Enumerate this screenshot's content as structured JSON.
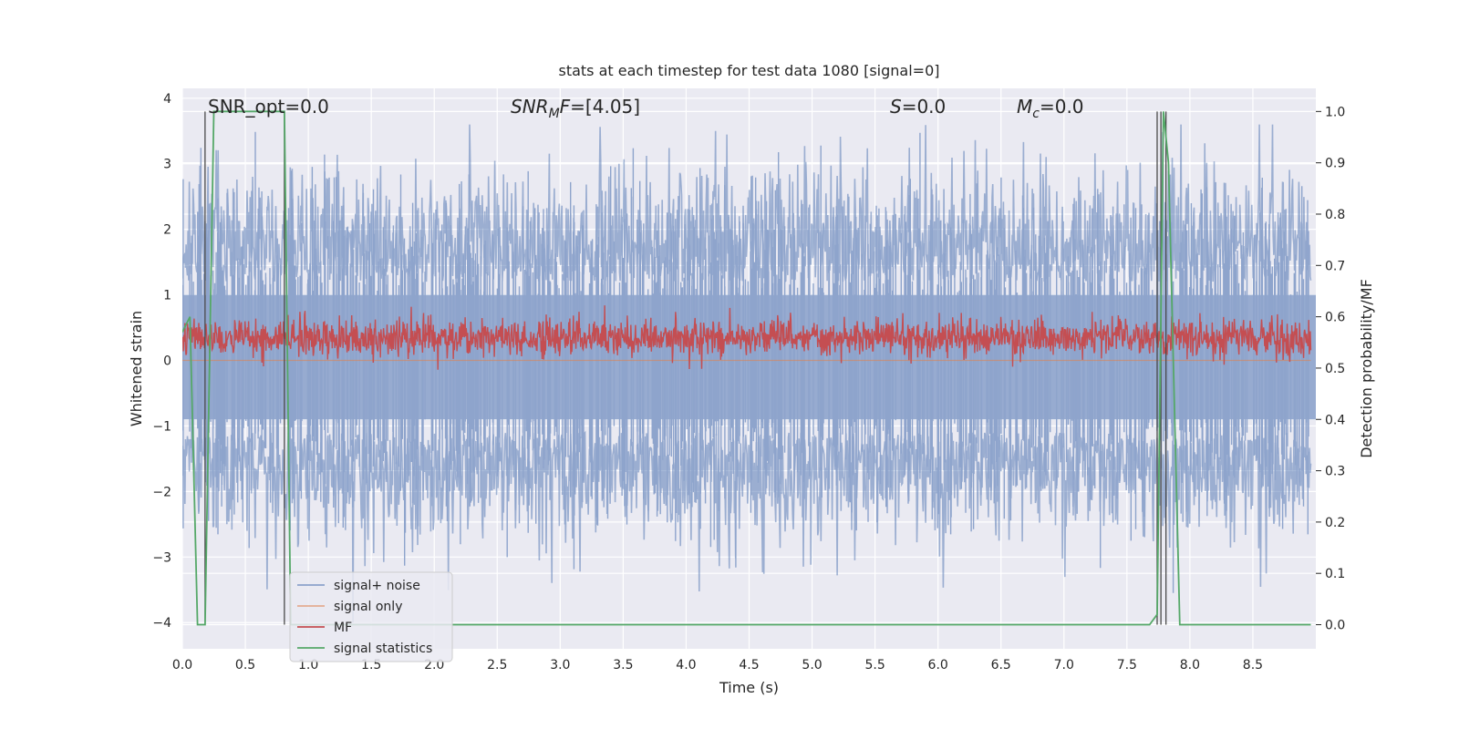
{
  "chart_data": {
    "type": "line",
    "title": "stats at each timestep for test data 1080 [signal=0]",
    "xlabel": "Time (s)",
    "ylabel": "Whitened strain",
    "y2label": "Detection probability/MF",
    "xlim": [
      0.0,
      9.0
    ],
    "ylim": [
      -4.4,
      4.15
    ],
    "y2lim": [
      -0.047,
      1.045
    ],
    "xticks": [
      "0.0",
      "0.5",
      "1.0",
      "1.5",
      "2.0",
      "2.5",
      "3.0",
      "3.5",
      "4.0",
      "4.5",
      "5.0",
      "5.5",
      "6.0",
      "6.5",
      "7.0",
      "7.5",
      "8.0",
      "8.5"
    ],
    "yticks": [
      "−4",
      "−3",
      "−2",
      "−1",
      "0",
      "1",
      "2",
      "3",
      "4"
    ],
    "y2ticks": [
      "0.0",
      "0.1",
      "0.2",
      "0.3",
      "0.4",
      "0.5",
      "0.6",
      "0.7",
      "0.8",
      "0.9",
      "1.0"
    ],
    "grid": true,
    "legend_position": "lower-left",
    "annotations": {
      "snr_opt": "SNR_opt=0.0",
      "snr_mf": "SNR_MF=[4.05]",
      "s": "S=0.0",
      "mc": "M_c=0.0"
    },
    "series": [
      {
        "name": "signal+ noise",
        "color": "#4c72b0",
        "description_level": "noise",
        "envelope_typical_range": [
          -2.0,
          2.3
        ],
        "extremes": {
          "max": 3.6,
          "min": -4.0
        }
      },
      {
        "name": "signal only",
        "color": "#dd8452",
        "values": "zero"
      },
      {
        "name": "MF",
        "color": "#c44e52",
        "axis": "right",
        "typical_range": [
          0.52,
          0.6
        ],
        "center": 0.56
      },
      {
        "name": "signal statistics",
        "color": "#55a868",
        "axis": "right",
        "points": [
          [
            0.0,
            0.57
          ],
          [
            0.06,
            0.6
          ],
          [
            0.12,
            0.0
          ],
          [
            0.18,
            0.0
          ],
          [
            0.25,
            1.0
          ],
          [
            0.81,
            1.0
          ],
          [
            0.86,
            0.0
          ],
          [
            7.68,
            0.0
          ],
          [
            7.74,
            0.02
          ],
          [
            7.79,
            1.0
          ],
          [
            7.83,
            0.9
          ],
          [
            7.92,
            0.0
          ],
          [
            8.96,
            0.0
          ]
        ]
      }
    ],
    "vertical_lines": [
      0.18,
      0.81,
      7.74,
      7.77,
      7.81
    ]
  }
}
